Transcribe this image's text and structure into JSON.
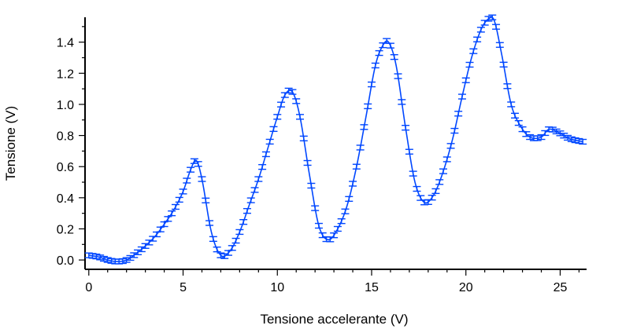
{
  "colors": {
    "series": "#0047ff",
    "axis": "#000000",
    "background": "#ffffff"
  },
  "chart_data": {
    "type": "line",
    "title": "",
    "xlabel": "Tensione accelerante (V)",
    "ylabel": "Tensione (V)",
    "xlim": [
      -0.2,
      26.4
    ],
    "ylim": [
      -0.06,
      1.58
    ],
    "grid": false,
    "legend": "none",
    "xticks": [
      0,
      5,
      10,
      15,
      20,
      25
    ],
    "xtick_labels": [
      "0",
      "5",
      "10",
      "15",
      "20",
      "25"
    ],
    "yticks": [
      0.0,
      0.2,
      0.4,
      0.6,
      0.8,
      1.0,
      1.2,
      1.4
    ],
    "ytick_labels": [
      "0.0",
      "0.2",
      "0.4",
      "0.6",
      "0.8",
      "1.0",
      "1.2",
      "1.4"
    ],
    "error_bar": 0.015,
    "series": [
      {
        "style": "line with error bars",
        "x": [
          0.0,
          0.5,
          1.0,
          1.5,
          2.0,
          2.5,
          3.0,
          3.5,
          4.0,
          4.5,
          5.0,
          5.4,
          5.7,
          6.0,
          6.5,
          7.0,
          7.5,
          8.0,
          8.5,
          9.0,
          9.5,
          10.0,
          10.4,
          10.8,
          11.2,
          11.7,
          12.2,
          12.7,
          13.2,
          13.7,
          14.2,
          14.7,
          15.2,
          15.6,
          15.9,
          16.3,
          16.8,
          17.3,
          17.8,
          18.3,
          18.8,
          19.3,
          19.8,
          20.3,
          20.8,
          21.2,
          21.5,
          21.9,
          22.4,
          22.9,
          23.4,
          24.0,
          24.4,
          24.9,
          25.5,
          26.2
        ],
        "y": [
          0.03,
          0.02,
          0.0,
          -0.01,
          0.0,
          0.04,
          0.09,
          0.15,
          0.23,
          0.32,
          0.44,
          0.58,
          0.64,
          0.52,
          0.18,
          0.03,
          0.06,
          0.18,
          0.35,
          0.52,
          0.72,
          0.92,
          1.06,
          1.08,
          0.92,
          0.55,
          0.22,
          0.13,
          0.2,
          0.35,
          0.6,
          0.92,
          1.25,
          1.38,
          1.4,
          1.25,
          0.85,
          0.5,
          0.37,
          0.42,
          0.57,
          0.78,
          1.05,
          1.3,
          1.48,
          1.55,
          1.54,
          1.32,
          1.0,
          0.86,
          0.79,
          0.79,
          0.84,
          0.82,
          0.78,
          0.76
        ]
      }
    ]
  }
}
